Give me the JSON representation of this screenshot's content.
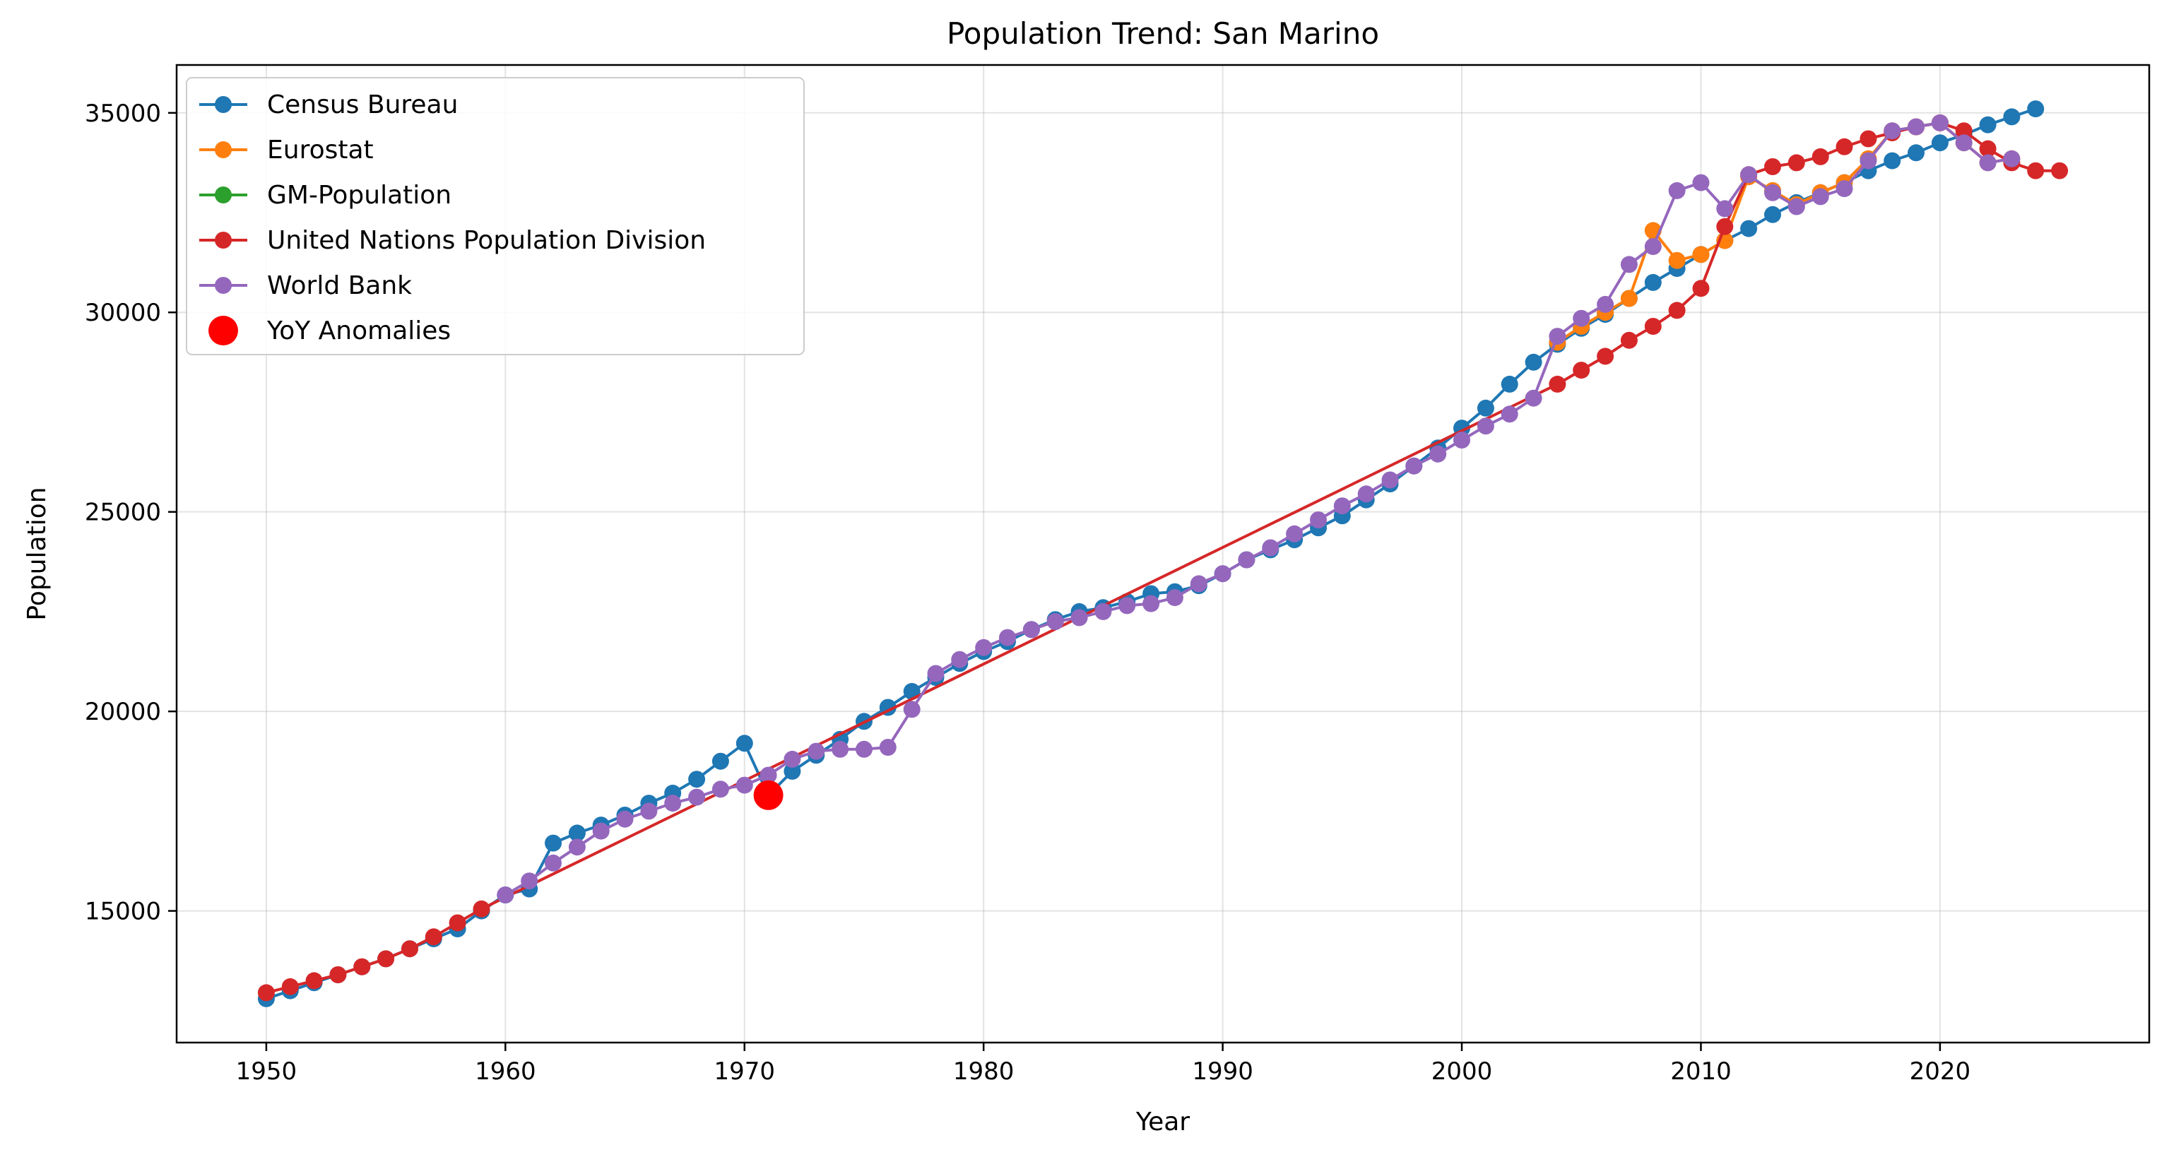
{
  "chart_data": {
    "type": "line",
    "title": "Population Trend: San Marino",
    "xlabel": "Year",
    "ylabel": "Population",
    "xlim": [
      1946.25,
      2028.75
    ],
    "ylim": [
      11700,
      36200
    ],
    "xticks": [
      1950,
      1960,
      1970,
      1980,
      1990,
      2000,
      2010,
      2020
    ],
    "yticks": [
      15000,
      20000,
      25000,
      30000,
      35000
    ],
    "grid": true,
    "legend_position": "top-left",
    "series": [
      {
        "name": "Census Bureau",
        "color": "#1f77b4",
        "x": [
          1950,
          1951,
          1952,
          1953,
          1954,
          1955,
          1956,
          1957,
          1958,
          1959,
          1960,
          1961,
          1962,
          1963,
          1964,
          1965,
          1966,
          1967,
          1968,
          1969,
          1970,
          1971,
          1972,
          1973,
          1974,
          1975,
          1976,
          1977,
          1978,
          1979,
          1980,
          1981,
          1982,
          1983,
          1984,
          1985,
          1986,
          1987,
          1988,
          1989,
          1990,
          1991,
          1992,
          1993,
          1994,
          1995,
          1996,
          1997,
          1998,
          1999,
          2000,
          2001,
          2002,
          2003,
          2004,
          2005,
          2006,
          2007,
          2008,
          2009,
          2010,
          2011,
          2012,
          2013,
          2014,
          2015,
          2016,
          2017,
          2018,
          2019,
          2020,
          2021,
          2022,
          2023,
          2024
        ],
        "values": [
          12800,
          13000,
          13200,
          13400,
          13600,
          13800,
          14050,
          14300,
          14550,
          15000,
          15400,
          15550,
          16700,
          16950,
          17150,
          17400,
          17700,
          17950,
          18300,
          18750,
          19200,
          17900,
          18500,
          18900,
          19300,
          19750,
          20100,
          20500,
          20850,
          21200,
          21500,
          21750,
          22050,
          22300,
          22500,
          22600,
          22750,
          22950,
          23000,
          23150,
          23450,
          23800,
          24050,
          24300,
          24600,
          24900,
          25300,
          25700,
          26150,
          26600,
          27100,
          27600,
          28200,
          28750,
          29200,
          29600,
          29950,
          30350,
          30750,
          31100,
          31450,
          31800,
          32100,
          32450,
          32750,
          33000,
          33250,
          33550,
          33800,
          34000,
          34250,
          34450,
          34700,
          34900,
          35100
        ]
      },
      {
        "name": "Eurostat",
        "color": "#ff7f0e",
        "x": [
          2004,
          2005,
          2006,
          2007,
          2008,
          2009,
          2010,
          2011,
          2012,
          2013,
          2014,
          2015,
          2016,
          2017,
          2018,
          2019,
          2020,
          2021,
          2022,
          2023
        ],
        "values": [
          29250,
          29650,
          30000,
          30350,
          32050,
          31300,
          31450,
          31800,
          33400,
          33050,
          32700,
          33000,
          33250,
          33850,
          34550,
          34650,
          34750,
          34250,
          33750,
          33850
        ]
      },
      {
        "name": "GM-Population",
        "color": "#2ca02c",
        "x": [],
        "values": []
      },
      {
        "name": "United Nations Population Division",
        "color": "#d62728",
        "x": [
          1950,
          1951,
          1952,
          1953,
          1954,
          1955,
          1956,
          1957,
          1958,
          1959,
          2004,
          2005,
          2006,
          2007,
          2008,
          2009,
          2010,
          2011,
          2012,
          2013,
          2014,
          2015,
          2016,
          2017,
          2018,
          2019,
          2020,
          2021,
          2022,
          2023,
          2024,
          2025
        ],
        "values": [
          12950,
          13100,
          13250,
          13400,
          13600,
          13800,
          14050,
          14350,
          14700,
          15050,
          28200,
          28550,
          28900,
          29300,
          29650,
          30050,
          30600,
          32150,
          33450,
          33650,
          33750,
          33900,
          34150,
          34350,
          34500,
          34650,
          34750,
          34550,
          34100,
          33750,
          33550,
          33550
        ]
      },
      {
        "name": "World Bank",
        "color": "#9467bd",
        "x": [
          1960,
          1961,
          1962,
          1963,
          1964,
          1965,
          1966,
          1967,
          1968,
          1969,
          1970,
          1971,
          1972,
          1973,
          1974,
          1975,
          1976,
          1977,
          1978,
          1979,
          1980,
          1981,
          1982,
          1983,
          1984,
          1985,
          1986,
          1987,
          1988,
          1989,
          1990,
          1991,
          1992,
          1993,
          1994,
          1995,
          1996,
          1997,
          1998,
          1999,
          2000,
          2001,
          2002,
          2003,
          2004,
          2005,
          2006,
          2007,
          2008,
          2009,
          2010,
          2011,
          2012,
          2013,
          2014,
          2015,
          2016,
          2017,
          2018,
          2019,
          2020,
          2021,
          2022,
          2023
        ],
        "values": [
          15400,
          15750,
          16200,
          16600,
          17000,
          17300,
          17500,
          17700,
          17850,
          18050,
          18150,
          18400,
          18800,
          19000,
          19050,
          19050,
          19100,
          20050,
          20950,
          21300,
          21600,
          21850,
          22050,
          22250,
          22350,
          22500,
          22650,
          22700,
          22850,
          23200,
          23450,
          23800,
          24100,
          24450,
          24800,
          25150,
          25450,
          25800,
          26150,
          26450,
          26800,
          27150,
          27450,
          27850,
          29400,
          29850,
          30200,
          31200,
          31650,
          33050,
          33250,
          32600,
          33450,
          33000,
          32650,
          32900,
          33100,
          33800,
          34550,
          34650,
          34750,
          34250,
          33750,
          33850
        ]
      }
    ],
    "anomalies": {
      "name": "YoY Anomalies",
      "color": "#ff0000",
      "x": [
        1971
      ],
      "values": [
        17900
      ]
    }
  }
}
